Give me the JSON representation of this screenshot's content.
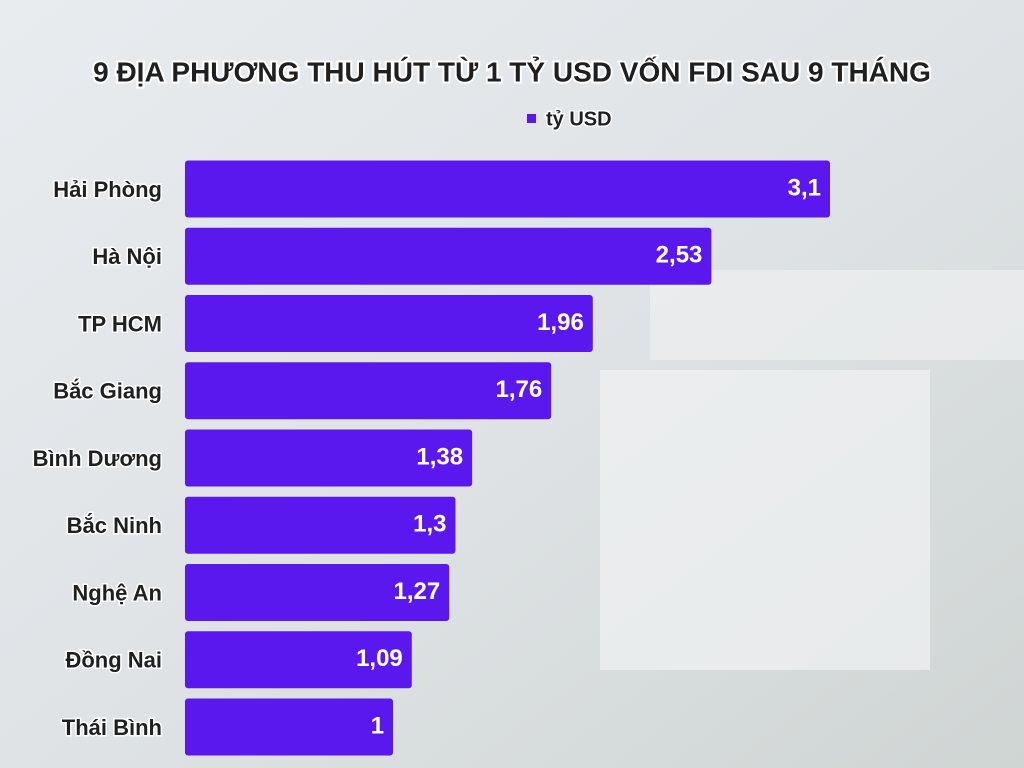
{
  "chart_data": {
    "type": "bar",
    "orientation": "horizontal",
    "title": "9 ĐỊA PHƯƠNG THU HÚT TỪ 1 TỶ USD VỐN FDI SAU 9 THÁNG",
    "categories": [
      "Hải Phòng",
      "Hà Nội",
      "TP HCM",
      "Bắc Giang",
      "Bình Dương",
      "Bắc Ninh",
      "Nghệ An",
      "Đồng Nai",
      "Thái Bình"
    ],
    "series": [
      {
        "name": "tỷ USD",
        "color": "#5a18ee",
        "values": [
          3.1,
          2.53,
          1.96,
          1.76,
          1.38,
          1.3,
          1.27,
          1.09,
          1
        ],
        "value_labels": [
          "3,1",
          "2,53",
          "1,96",
          "1,76",
          "1,38",
          "1,3",
          "1,27",
          "1,09",
          "1"
        ]
      }
    ],
    "legend": "top"
  }
}
